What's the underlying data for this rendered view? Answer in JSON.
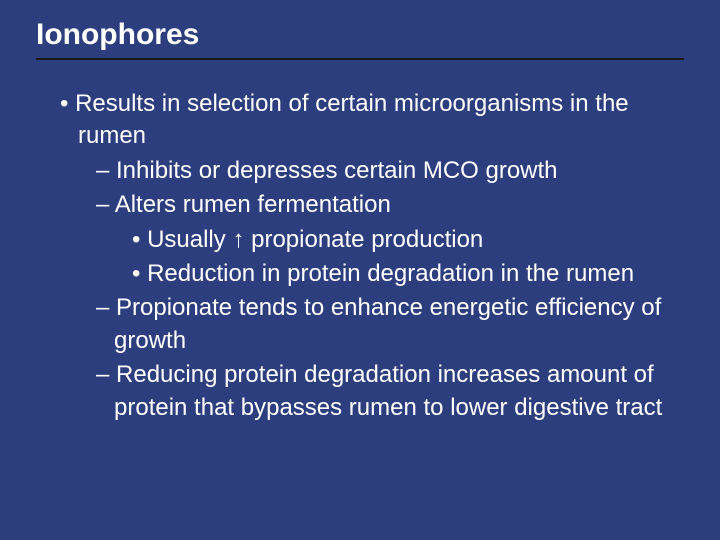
{
  "slide": {
    "background_color": "#2d3e7e",
    "text_color": "#ffffff",
    "title_underline_color": "#1a1a1a",
    "title": "Ionophores",
    "title_fontsize": 30,
    "body_fontsize": 24,
    "bullets": {
      "b1": "• Results in selection of certain microorganisms in the rumen",
      "b2": "– Inhibits or depresses certain MCO growth",
      "b3": "– Alters rumen fermentation",
      "b4a": "• Usually ",
      "b4arrow": "↑",
      "b4b": " propionate production",
      "b5": "• Reduction in protein degradation in the rumen",
      "b6": "– Propionate tends to enhance energetic efficiency of growth",
      "b7": "– Reducing protein degradation increases amount of protein that bypasses rumen to lower digestive tract"
    }
  }
}
